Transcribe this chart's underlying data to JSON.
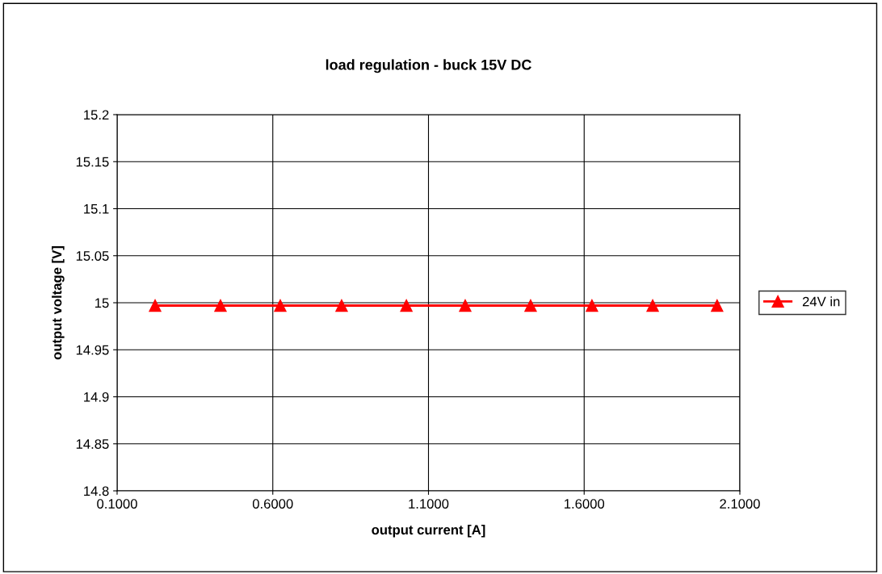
{
  "chart_data": {
    "type": "line",
    "title": "load regulation - buck 15V DC",
    "xlabel": "output current [A]",
    "ylabel": "output voltage [V]",
    "x": [
      0.222,
      0.432,
      0.624,
      0.821,
      1.029,
      1.218,
      1.428,
      1.625,
      1.82,
      2.027
    ],
    "series": [
      {
        "name": "24V in",
        "color": "#ff0000",
        "values": [
          14.997,
          14.997,
          14.997,
          14.997,
          14.997,
          14.997,
          14.997,
          14.997,
          14.997,
          14.997
        ]
      }
    ],
    "xlim": [
      0.1,
      2.1
    ],
    "xticks": [
      {
        "value": 0.1,
        "label": "0.1000"
      },
      {
        "value": 0.6,
        "label": "0.6000"
      },
      {
        "value": 1.1,
        "label": "1.1000"
      },
      {
        "value": 1.6,
        "label": "1.6000"
      },
      {
        "value": 2.1,
        "label": "2.1000"
      }
    ],
    "ylim": [
      14.8,
      15.2
    ],
    "yticks": [
      14.8,
      14.85,
      14.9,
      14.95,
      15,
      15.05,
      15.1,
      15.15,
      15.2
    ],
    "grid": true,
    "legend": "right",
    "marker": "triangle",
    "line_style": "solid"
  }
}
